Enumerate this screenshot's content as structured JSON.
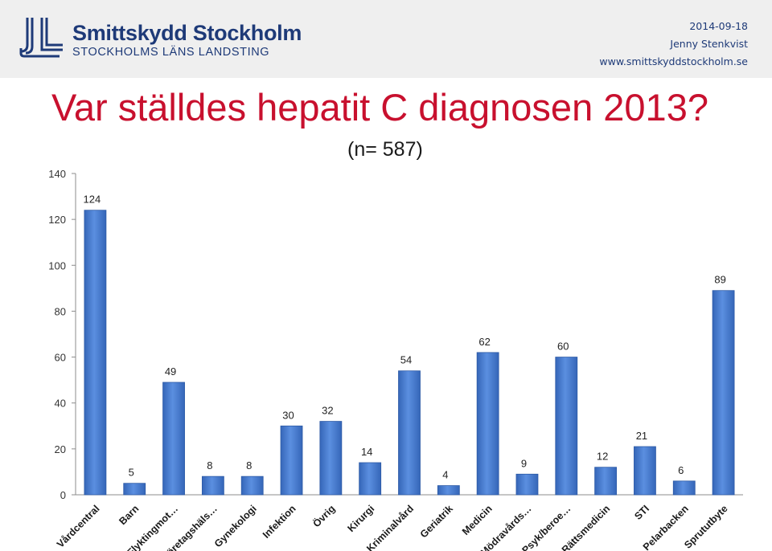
{
  "header": {
    "logo_alt": "Smittskydd Stockholm logo",
    "org_name": "Smittskydd Stockholm",
    "org_sub": "STOCKHOLMS LÄNS LANDSTING",
    "date": "2014-09-18",
    "author": "Jenny Stenkvist",
    "website": "www.smittskyddstockholm.se",
    "brand_color": "#1e3a78"
  },
  "slide": {
    "title": "Var ställdes hepatit C diagnosen 2013?",
    "subtitle": "(n= 587)",
    "title_color": "#c8102e"
  },
  "chart_data": {
    "type": "bar",
    "title": "Var ställdes hepatit C diagnosen 2013?",
    "subtitle": "(n= 587)",
    "xlabel": "",
    "ylabel": "",
    "ylim": [
      0,
      140
    ],
    "yticks": [
      0,
      20,
      40,
      60,
      80,
      100,
      120,
      140
    ],
    "grid": false,
    "bar_color": "#4a7fd4",
    "categories": [
      "Vårdcentral",
      "Barn",
      "Flyktingmot…",
      "Företagshäls…",
      "Gynekologi",
      "Infektion",
      "Övrig",
      "Kirurgi",
      "Kriminalvård",
      "Geriatrik",
      "Medicin",
      "Mödravårds…",
      "Psyk/beroe…",
      "Rättsmedicin",
      "STI",
      "Pelarbacken",
      "Sprututbyte"
    ],
    "values": [
      124,
      5,
      49,
      8,
      8,
      30,
      32,
      14,
      54,
      4,
      62,
      9,
      60,
      12,
      21,
      6,
      89
    ]
  }
}
